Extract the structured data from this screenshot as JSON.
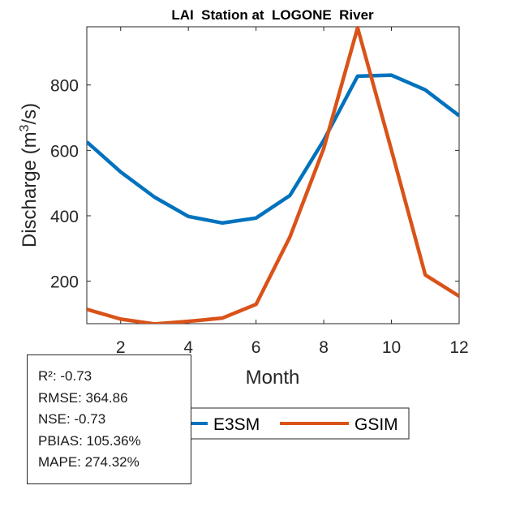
{
  "chart_data": {
    "type": "line",
    "title": "LAI  Station at  LOGONE  River",
    "xlabel": "Month",
    "ylabel": "Discharge (m³/s)",
    "ylabel_parts": {
      "pre": "Discharge (m",
      "sup": "3",
      "post": "/s)"
    },
    "x": [
      1,
      2,
      3,
      4,
      5,
      6,
      7,
      8,
      9,
      10,
      11,
      12
    ],
    "xlim": [
      1,
      12
    ],
    "ylim": [
      70,
      978
    ],
    "xticks": [
      2,
      4,
      6,
      8,
      10,
      12
    ],
    "yticks": [
      200,
      400,
      600,
      800
    ],
    "grid": false,
    "legend_position": "bottom-center",
    "series": [
      {
        "name": "E3SM",
        "color": "#0072BD",
        "values": [
          626,
          534,
          457,
          398,
          378,
          393,
          462,
          631,
          827,
          830,
          785,
          706
        ]
      },
      {
        "name": "GSIM",
        "color": "#D95319",
        "values": [
          114,
          84,
          69,
          77,
          87,
          129,
          335,
          606,
          975,
          601,
          219,
          154
        ]
      }
    ]
  },
  "stats": {
    "lines": [
      "R²: -0.73",
      "RMSE: 364.86",
      "NSE: -0.73",
      "PBIAS: 105.36%",
      "MAPE: 274.32%"
    ]
  }
}
